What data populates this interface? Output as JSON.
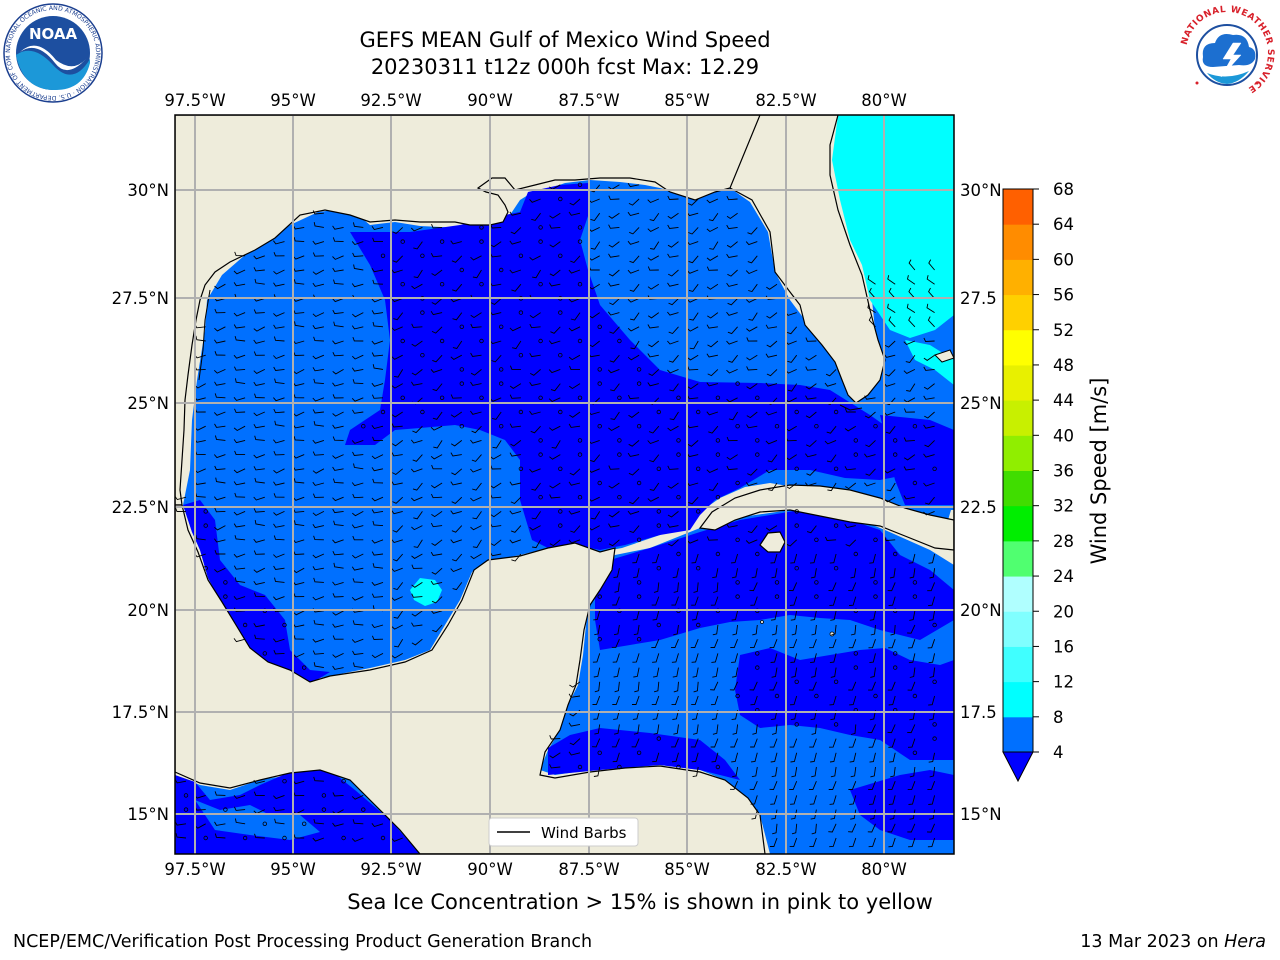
{
  "title": {
    "line1": "GEFS MEAN Gulf of Mexico Wind Speed",
    "line2": "20230311 t12z 000h fcst   Max: 12.29"
  },
  "map": {
    "lon_labels": [
      "97.5°W",
      "95°W",
      "92.5°W",
      "90°W",
      "87.5°W",
      "85°W",
      "82.5°W",
      "80°W"
    ],
    "lat_labels": [
      "30°N",
      "27.5°N",
      "25°N",
      "22.5°N",
      "20°N",
      "17.5°N",
      "15°N"
    ],
    "lat_labels_right": [
      "30°N",
      "27.5",
      "25°N",
      "22.5",
      "20°N",
      "17.5",
      "15°N"
    ],
    "legend_label": "Wind Barbs",
    "land_color": "#eeecdb",
    "field": "wind speed contour fill with wind barbs"
  },
  "colorbar": {
    "label": "Wind Speed [m/s]",
    "levels": [
      4,
      8,
      12,
      16,
      20,
      24,
      28,
      32,
      36,
      40,
      44,
      48,
      52,
      56,
      60,
      64,
      68
    ],
    "colors": [
      "#0070ff",
      "#00ffff",
      "#40ffff",
      "#80ffff",
      "#b0ffff",
      "#50ff70",
      "#00ee00",
      "#40dd00",
      "#90ee00",
      "#c8f000",
      "#e8f000",
      "#ffff00",
      "#ffd000",
      "#ffb000",
      "#ff8c00",
      "#ff6000",
      "#ff3000",
      "#ff0000"
    ],
    "under_color": "#0000ff"
  },
  "caption": "Sea Ice Concentration > 15% is shown in pink to yellow",
  "footer": {
    "left": "NCEP/EMC/Verification Post Processing Product Generation Branch",
    "right_prefix": "13 Mar 2023 on ",
    "right_italic": "Hera"
  },
  "logos": {
    "noaa": "NOAA",
    "noaa_ring": "NATIONAL OCEANIC AND ATMOSPHERIC ADMINISTRATION · U.S. DEPARTMENT OF COMMERCE",
    "nws_ring": "NATIONAL WEATHER SERVICE"
  }
}
